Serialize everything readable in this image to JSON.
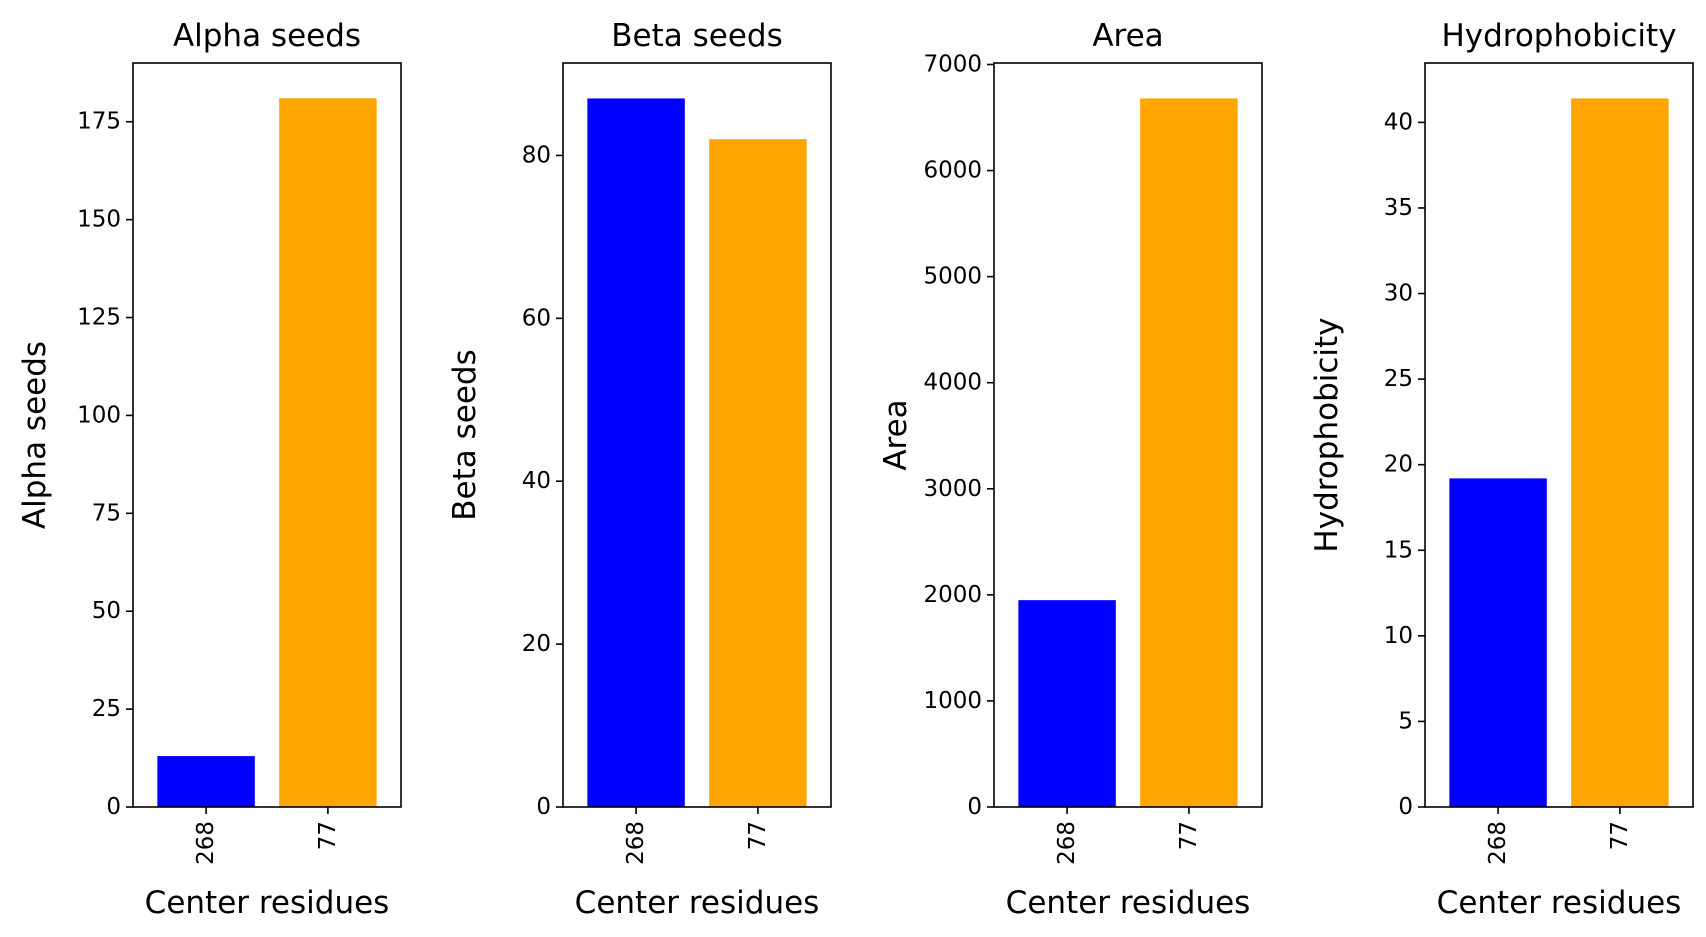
{
  "figure": {
    "background": "#ffffff",
    "bar_colors": [
      "#0000ff",
      "#ffa500"
    ]
  },
  "chart_data": [
    {
      "type": "bar",
      "title": "Alpha seeds",
      "xlabel": "Center residues",
      "ylabel": "Alpha seeds",
      "categories": [
        "268",
        "77"
      ],
      "values": [
        13,
        181
      ],
      "ylim": [
        0,
        190
      ],
      "yticks": [
        0,
        25,
        50,
        75,
        100,
        125,
        150,
        175
      ],
      "grid": false,
      "legend": "none"
    },
    {
      "type": "bar",
      "title": "Beta seeds",
      "xlabel": "Center residues",
      "ylabel": "Beta seeds",
      "categories": [
        "268",
        "77"
      ],
      "values": [
        87,
        82
      ],
      "ylim": [
        0,
        91.35
      ],
      "yticks": [
        0,
        20,
        40,
        60,
        80
      ],
      "grid": false,
      "legend": "none"
    },
    {
      "type": "bar",
      "title": "Area",
      "xlabel": "Center residues",
      "ylabel": "Area",
      "categories": [
        "268",
        "77"
      ],
      "values": [
        1950,
        6680
      ],
      "ylim": [
        0,
        7014
      ],
      "yticks": [
        0,
        1000,
        2000,
        3000,
        4000,
        5000,
        6000,
        7000
      ],
      "grid": false,
      "legend": "none"
    },
    {
      "type": "bar",
      "title": "Hydrophobicity",
      "xlabel": "Center residues",
      "ylabel": "Hydrophobicity",
      "categories": [
        "268",
        "77"
      ],
      "values": [
        19.2,
        41.4
      ],
      "ylim": [
        0,
        43.47
      ],
      "yticks": [
        0,
        5,
        10,
        15,
        20,
        25,
        30,
        35,
        40
      ],
      "grid": false,
      "legend": "none"
    }
  ]
}
